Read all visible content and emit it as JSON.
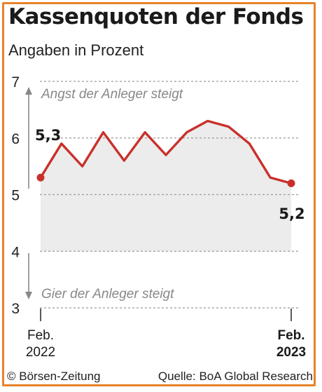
{
  "title": "Kassenquoten der Fonds",
  "subtitle": "Angaben in Prozent",
  "footer": {
    "copyright": "© Börsen-Zeitung",
    "source": "Quelle: BoA Global Research"
  },
  "colors": {
    "frame": "#e8822a",
    "line": "#c8312b",
    "fill": "#ececec",
    "grid": "#9a9a9a",
    "annotation": "#888888"
  },
  "chart_data": {
    "type": "line",
    "x": [
      "2022-02",
      "2022-03",
      "2022-04",
      "2022-05",
      "2022-06",
      "2022-07",
      "2022-08",
      "2022-09",
      "2022-10",
      "2022-11",
      "2022-12",
      "2023-01",
      "2023-02"
    ],
    "values": [
      5.3,
      5.9,
      5.5,
      6.1,
      5.6,
      6.1,
      5.7,
      6.1,
      6.3,
      6.2,
      5.9,
      5.3,
      5.2
    ],
    "ylim": [
      3,
      7
    ],
    "yticks": [
      "3",
      "4",
      "5",
      "6",
      "7"
    ],
    "grid": true,
    "x_tick_labels": [
      {
        "line1": "Feb.",
        "line2": "2022",
        "bold": false
      },
      {
        "line1": "Feb.",
        "line2": "2023",
        "bold": true
      }
    ],
    "data_labels": [
      {
        "index": 0,
        "text": "5,3"
      },
      {
        "index": 12,
        "text": "5,2"
      }
    ],
    "annotations": {
      "up": "Angst der Anleger steigt",
      "down": "Gier der Anleger steigt"
    }
  }
}
